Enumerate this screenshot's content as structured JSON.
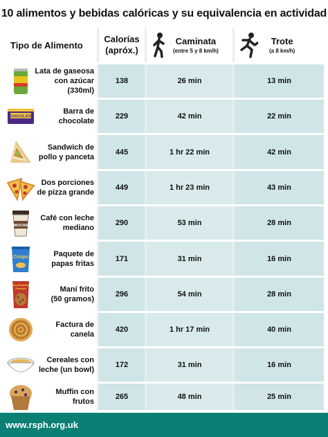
{
  "title": "10 alimentos y bebidas calóricas y su equivalencia en actividad",
  "header": {
    "food": "Tipo de Alimento",
    "calories_line1": "Calorías",
    "calories_line2": "(apróx.)",
    "walk": "Caminata",
    "walk_sub": "(entre 5 y 8 km/h)",
    "jog": "Trote",
    "jog_sub": "(a 8 km/h)"
  },
  "rows": [
    {
      "food_line1": "Lata de gaseosa",
      "food_line2": "con azúcar (330ml)",
      "calories": "138",
      "walk": "26 min",
      "jog": "13 min",
      "icon": "soda-can-icon"
    },
    {
      "food_line1": "Barra de",
      "food_line2": "chocolate",
      "calories": "229",
      "walk": "42 min",
      "jog": "22 min",
      "icon": "chocolate-bar-icon"
    },
    {
      "food_line1": "Sandwich de",
      "food_line2": "pollo y panceta",
      "calories": "445",
      "walk": "1 hr 22 min",
      "jog": "42 min",
      "icon": "sandwich-icon"
    },
    {
      "food_line1": "Dos porciones",
      "food_line2": "de pizza grande",
      "calories": "449",
      "walk": "1 hr 23 min",
      "jog": "43 min",
      "icon": "pizza-icon"
    },
    {
      "food_line1": "Café con leche",
      "food_line2": "mediano",
      "calories": "290",
      "walk": "53 min",
      "jog": "28 min",
      "icon": "coffee-cup-icon"
    },
    {
      "food_line1": "Paquete de",
      "food_line2": "papas fritas",
      "calories": "171",
      "walk": "31 min",
      "jog": "16 min",
      "icon": "chips-bag-icon"
    },
    {
      "food_line1": "Maní frito",
      "food_line2": "(50 gramos)",
      "calories": "296",
      "walk": "54 min",
      "jog": "28 min",
      "icon": "peanuts-bag-icon"
    },
    {
      "food_line1": "Factura de",
      "food_line2": "canela",
      "calories": "420",
      "walk": "1 hr 17 min",
      "jog": "40 min",
      "icon": "cinnamon-roll-icon"
    },
    {
      "food_line1": "Cereales con",
      "food_line2": "leche (un bowl)",
      "calories": "172",
      "walk": "31 min",
      "jog": "16 min",
      "icon": "cereal-bowl-icon"
    },
    {
      "food_line1": "Muffin con frutos",
      "food_line2": "",
      "calories": "265",
      "walk": "48 min",
      "jog": "25 min",
      "icon": "muffin-icon"
    }
  ],
  "icon_labels": {
    "chocolate": "CHOCOLATE",
    "coffee": "MOCHA",
    "chips": "Crisps",
    "peanuts_line1": "Dry Roasted",
    "peanuts_line2": "Peanuts"
  },
  "footer": "www.rsph.org.uk",
  "colors": {
    "footer_bg": "#0b7f74",
    "cell_bg": "#cfe5e8",
    "walk_col_bg": "#d9eaec"
  }
}
